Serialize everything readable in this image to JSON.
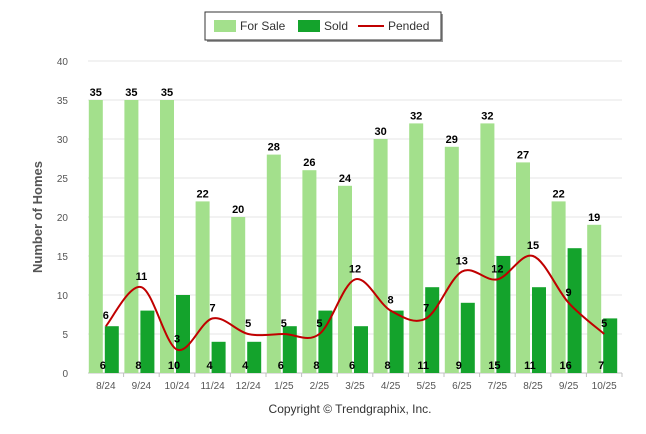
{
  "chart_data": {
    "type": "bar",
    "categories": [
      "8/24",
      "9/24",
      "10/24",
      "11/24",
      "12/24",
      "1/25",
      "2/25",
      "3/25",
      "4/25",
      "5/25",
      "6/25",
      "7/25",
      "8/25",
      "9/25",
      "10/25"
    ],
    "series": [
      {
        "name": "For Sale",
        "type": "bar",
        "color": "#a3e08c",
        "values": [
          35,
          35,
          35,
          22,
          20,
          28,
          26,
          24,
          30,
          32,
          29,
          32,
          27,
          22,
          19
        ]
      },
      {
        "name": "Sold",
        "type": "bar",
        "color": "#14a32c",
        "values": [
          6,
          8,
          10,
          4,
          4,
          6,
          8,
          6,
          8,
          11,
          9,
          15,
          11,
          16,
          7
        ]
      },
      {
        "name": "Pended",
        "type": "line",
        "color": "#c00000",
        "values": [
          6,
          11,
          3,
          7,
          5,
          5,
          5,
          12,
          8,
          7,
          13,
          12,
          15,
          9,
          5
        ]
      }
    ],
    "ylabel": "Number of Homes",
    "ylim": [
      0,
      40
    ],
    "yticks": [
      0,
      5,
      10,
      15,
      20,
      25,
      30,
      35,
      40
    ],
    "grid": true,
    "legend_position": "top-center",
    "credit": "Copyright © Trendgraphix, Inc."
  }
}
